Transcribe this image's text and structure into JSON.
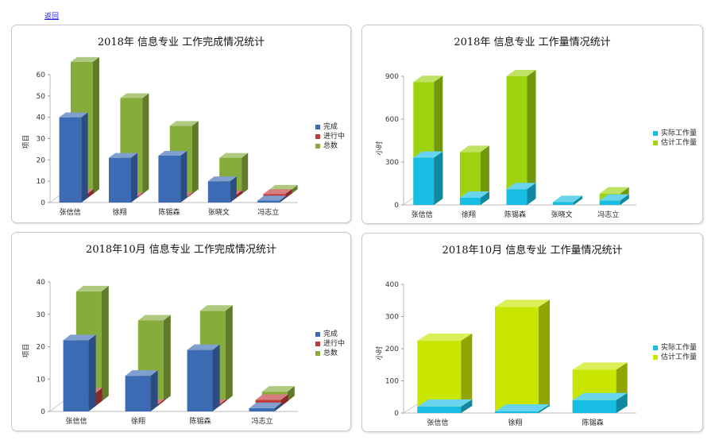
{
  "back_link": "返回",
  "chart_data": [
    {
      "type": "bar",
      "title": "2018年 信息专业 工作完成情况统计",
      "ylabel": "项目",
      "ylim": [
        0,
        60
      ],
      "yticks": [
        0,
        10,
        20,
        30,
        40,
        50,
        60
      ],
      "categories": [
        "张信信",
        "徐翔",
        "陈锡森",
        "张晓文",
        "冯志立"
      ],
      "series": [
        {
          "name": "完成",
          "color": "#3d6bb3",
          "values": [
            40,
            21,
            22,
            10,
            1
          ]
        },
        {
          "name": "进行中",
          "color": "#c0393b",
          "values": [
            2,
            0.5,
            0.5,
            1.5,
            2
          ]
        },
        {
          "name": "总数",
          "color": "#86ac3c",
          "values": [
            62,
            45,
            32,
            17,
            2
          ]
        }
      ],
      "legend_position": "right"
    },
    {
      "type": "bar",
      "title": "2018年 信息专业 工作量情况统计",
      "ylabel": "小时",
      "ylim": [
        0,
        900
      ],
      "yticks": [
        0,
        300,
        600,
        900
      ],
      "categories": [
        "张信信",
        "徐翔",
        "陈锡森",
        "张晓文",
        "冯志立"
      ],
      "series": [
        {
          "name": "实际工作量",
          "color": "#18bde3",
          "values": [
            330,
            50,
            110,
            20,
            30
          ]
        },
        {
          "name": "估计工作量",
          "color": "#9dd30f",
          "values": [
            860,
            370,
            900,
            20,
            80
          ]
        }
      ],
      "legend_position": "right"
    },
    {
      "type": "bar",
      "title": "2018年10月 信息专业 工作完成情况统计",
      "ylabel": "项目",
      "ylim": [
        0,
        40
      ],
      "yticks": [
        0,
        10,
        20,
        30,
        40
      ],
      "categories": [
        "张信信",
        "徐翔",
        "陈锡森",
        "冯志立"
      ],
      "series": [
        {
          "name": "完成",
          "color": "#3d6bb3",
          "values": [
            22,
            11,
            19,
            1
          ]
        },
        {
          "name": "进行中",
          "color": "#c0393b",
          "values": [
            4,
            0.5,
            0.5,
            2
          ]
        },
        {
          "name": "总数",
          "color": "#86ac3c",
          "values": [
            34,
            25,
            28,
            3
          ]
        }
      ],
      "legend_position": "right"
    },
    {
      "type": "bar",
      "title": "2018年10月 信息专业 工作量情况统计",
      "ylabel": "小时",
      "ylim": [
        0,
        400
      ],
      "yticks": [
        0,
        100,
        200,
        300,
        400
      ],
      "categories": [
        "张信信",
        "徐翔",
        "陈锡森"
      ],
      "series": [
        {
          "name": "实际工作量",
          "color": "#18bde3",
          "values": [
            20,
            5,
            40
          ]
        },
        {
          "name": "估计工作量",
          "color": "#c8e600",
          "values": [
            225,
            330,
            135
          ]
        }
      ],
      "legend_position": "right"
    }
  ]
}
